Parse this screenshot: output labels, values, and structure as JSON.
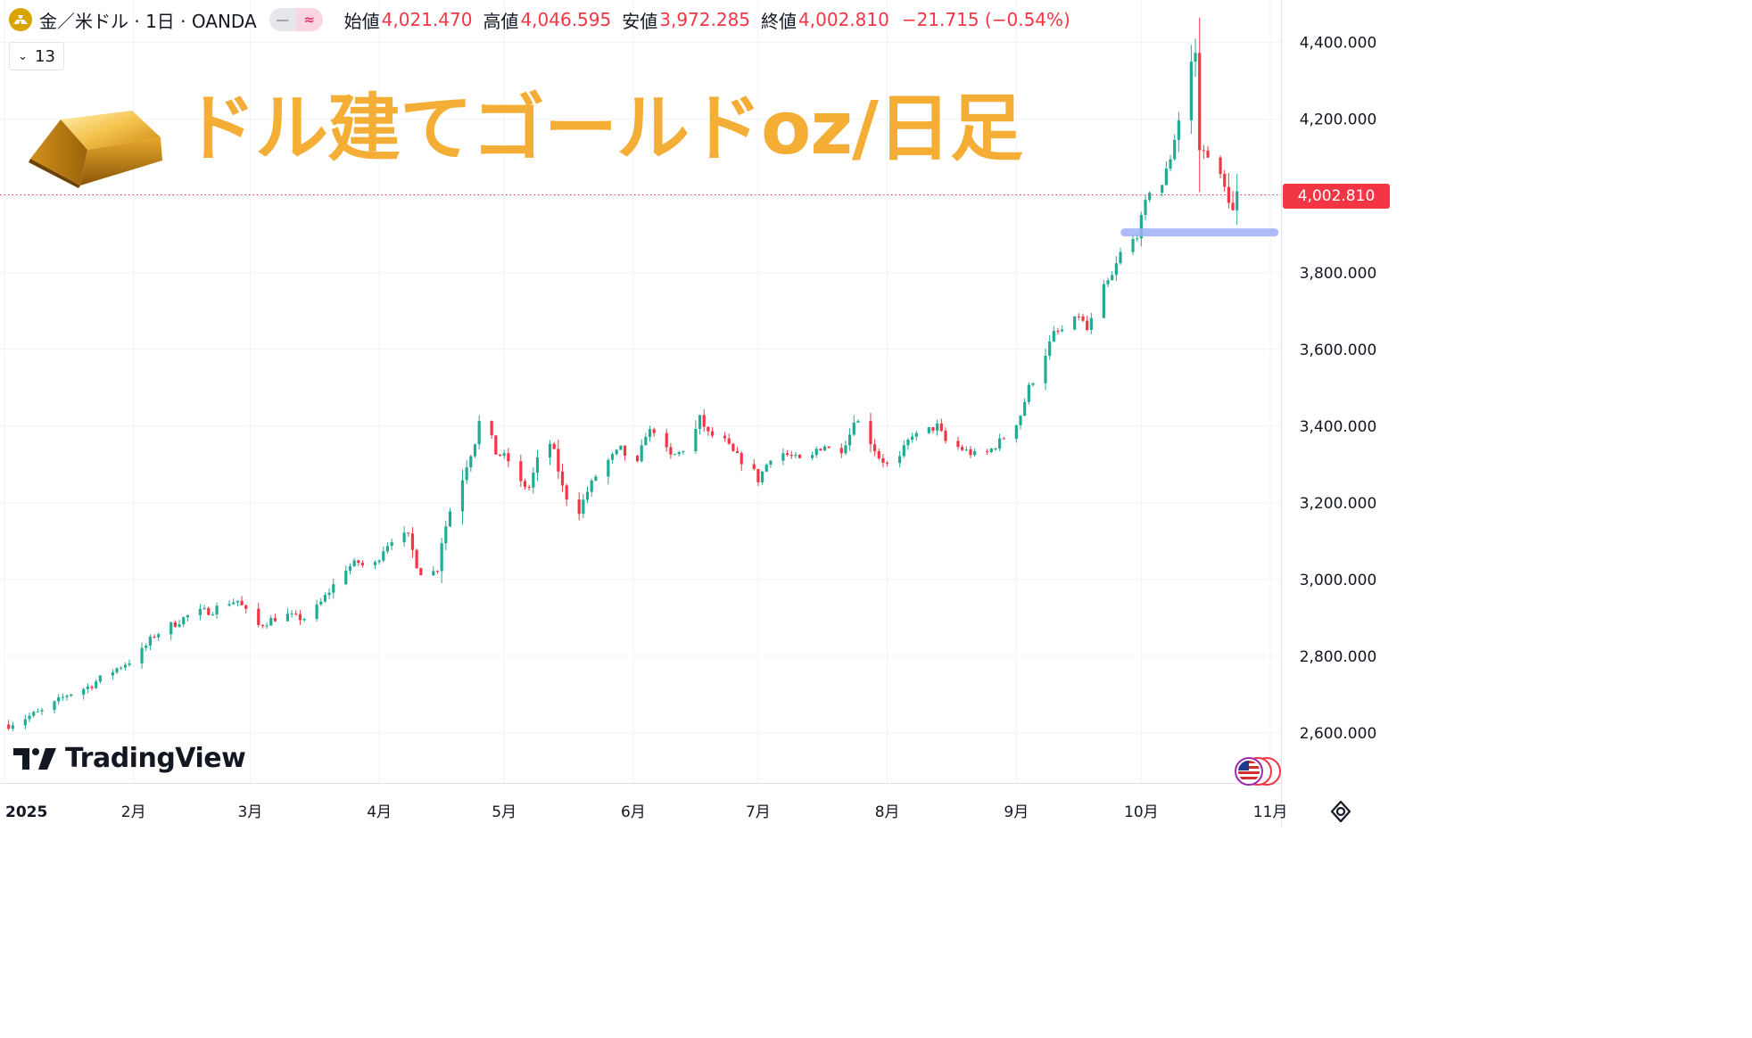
{
  "header": {
    "symbol_label": "金／米ドル · 1日 · OANDA",
    "pill_left": "—",
    "pill_right": "≈",
    "open_label": "始値",
    "open_value": "4,021.470",
    "high_label": "高値",
    "high_value": "4,046.595",
    "low_label": "安値",
    "low_value": "3,972.285",
    "close_label": "終値",
    "close_value": "4,002.810",
    "change_text": "−21.715 (−0.54%)"
  },
  "indicator_badge": {
    "label": "13"
  },
  "overlay_title": "ドル建てゴールドoz/日足",
  "brand": "TradingView",
  "colors": {
    "up": "#22ab94",
    "down": "#f23645",
    "grid": "#f0f3fa",
    "title": "#f4ad35",
    "support_line": "#9fb0f5",
    "last_price_tag": "#f23645",
    "axis_text": "#131722"
  },
  "chart_data": {
    "type": "candlestick",
    "series_name": "",
    "y_ticks": [
      "2,600.000",
      "2,800.000",
      "3,000.000",
      "3,200.000",
      "3,400.000",
      "3,600.000",
      "3,800.000",
      "4,000.000",
      "4,200.000",
      "4,400.000"
    ],
    "y_tick_values": [
      2600,
      2800,
      3000,
      3200,
      3400,
      3600,
      3800,
      4000,
      4200,
      4400
    ],
    "ylim": [
      2490,
      4490
    ],
    "x_tick_labels": [
      "2025",
      "2月",
      "3月",
      "4月",
      "5月",
      "6月",
      "7月",
      "8月",
      "9月",
      "10月",
      "11月"
    ],
    "x_tick_days": [
      0,
      31,
      59,
      90,
      120,
      151,
      181,
      212,
      243,
      273,
      304
    ],
    "last_price": 4002.81,
    "last_price_label": "4,002.810",
    "support_level": 3905,
    "support_from_day": 269,
    "support_to_day": 305,
    "ohlc_close_anchors": [
      [
        1,
        2622
      ],
      [
        5,
        2640
      ],
      [
        10,
        2660
      ],
      [
        15,
        2700
      ],
      [
        20,
        2720
      ],
      [
        25,
        2755
      ],
      [
        28,
        2775
      ],
      [
        32,
        2800
      ],
      [
        36,
        2855
      ],
      [
        40,
        2880
      ],
      [
        44,
        2905
      ],
      [
        47,
        2915
      ],
      [
        50,
        2920
      ],
      [
        53,
        2940
      ],
      [
        56,
        2945
      ],
      [
        58,
        2915
      ],
      [
        61,
        2880
      ],
      [
        64,
        2895
      ],
      [
        67,
        2910
      ],
      [
        70,
        2900
      ],
      [
        73,
        2900
      ],
      [
        76,
        2940
      ],
      [
        79,
        2985
      ],
      [
        82,
        3030
      ],
      [
        85,
        3045
      ],
      [
        88,
        3020
      ],
      [
        91,
        3080
      ],
      [
        94,
        3120
      ],
      [
        97,
        3110
      ],
      [
        99,
        3040
      ],
      [
        101,
        3000
      ],
      [
        102,
        3010
      ],
      [
        104,
        3030
      ],
      [
        105,
        3100
      ],
      [
        107,
        3180
      ],
      [
        109,
        3230
      ],
      [
        111,
        3300
      ],
      [
        113,
        3360
      ],
      [
        114,
        3410
      ],
      [
        116,
        3400
      ],
      [
        118,
        3330
      ],
      [
        120,
        3320
      ],
      [
        122,
        3300
      ],
      [
        124,
        3250
      ],
      [
        126,
        3240
      ],
      [
        128,
        3310
      ],
      [
        129,
        3400
      ],
      [
        130,
        3380
      ],
      [
        132,
        3330
      ],
      [
        134,
        3240
      ],
      [
        136,
        3190
      ],
      [
        138,
        3180
      ],
      [
        140,
        3230
      ],
      [
        142,
        3270
      ],
      [
        144,
        3300
      ],
      [
        146,
        3320
      ],
      [
        148,
        3340
      ],
      [
        150,
        3310
      ],
      [
        152,
        3300
      ],
      [
        154,
        3380
      ],
      [
        156,
        3390
      ],
      [
        158,
        3350
      ],
      [
        160,
        3320
      ],
      [
        162,
        3330
      ],
      [
        164,
        3350
      ],
      [
        166,
        3390
      ],
      [
        167,
        3420
      ],
      [
        169,
        3380
      ],
      [
        171,
        3370
      ],
      [
        173,
        3360
      ],
      [
        175,
        3330
      ],
      [
        177,
        3310
      ],
      [
        179,
        3300
      ],
      [
        181,
        3260
      ],
      [
        183,
        3300
      ],
      [
        185,
        3340
      ],
      [
        187,
        3330
      ],
      [
        189,
        3320
      ],
      [
        191,
        3310
      ],
      [
        193,
        3300
      ],
      [
        195,
        3340
      ],
      [
        197,
        3350
      ],
      [
        199,
        3330
      ],
      [
        201,
        3340
      ],
      [
        203,
        3380
      ],
      [
        204,
        3420
      ],
      [
        206,
        3400
      ],
      [
        208,
        3360
      ],
      [
        210,
        3320
      ],
      [
        212,
        3300
      ],
      [
        214,
        3290
      ],
      [
        216,
        3340
      ],
      [
        218,
        3380
      ],
      [
        220,
        3370
      ],
      [
        222,
        3390
      ],
      [
        224,
        3400
      ],
      [
        226,
        3360
      ],
      [
        228,
        3350
      ],
      [
        230,
        3340
      ],
      [
        232,
        3330
      ],
      [
        234,
        3320
      ],
      [
        236,
        3330
      ],
      [
        238,
        3350
      ],
      [
        240,
        3370
      ],
      [
        242,
        3390
      ],
      [
        244,
        3430
      ],
      [
        246,
        3500
      ],
      [
        248,
        3540
      ],
      [
        250,
        3590
      ],
      [
        252,
        3640
      ],
      [
        254,
        3650
      ],
      [
        256,
        3660
      ],
      [
        258,
        3690
      ],
      [
        260,
        3650
      ],
      [
        262,
        3700
      ],
      [
        264,
        3760
      ],
      [
        266,
        3790
      ],
      [
        268,
        3850
      ],
      [
        270,
        3870
      ],
      [
        272,
        3900
      ],
      [
        274,
        3980
      ],
      [
        276,
        4050
      ],
      [
        278,
        4030
      ],
      [
        280,
        4100
      ],
      [
        282,
        4200
      ],
      [
        284,
        4330
      ],
      [
        285,
        4350
      ],
      [
        286,
        4370
      ],
      [
        287,
        4120
      ],
      [
        289,
        4110
      ],
      [
        291,
        4080
      ],
      [
        293,
        4020
      ],
      [
        295,
        3960
      ],
      [
        297,
        4050
      ],
      [
        298,
        4002.8
      ]
    ]
  }
}
